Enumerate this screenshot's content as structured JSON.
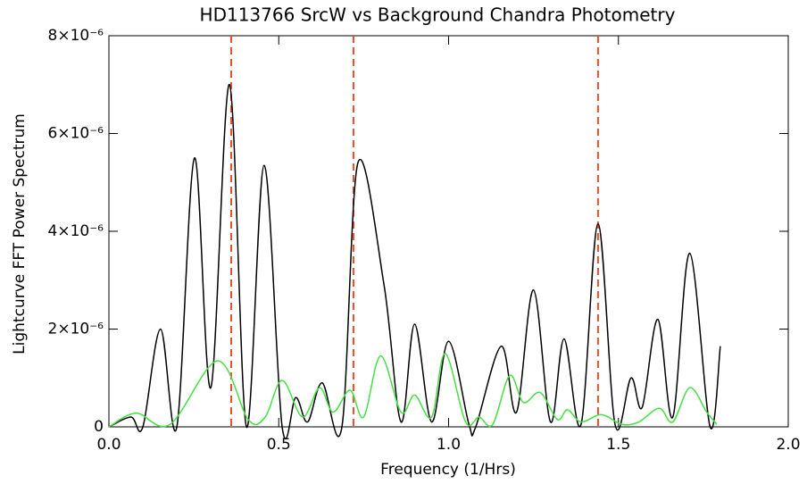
{
  "chart_data": {
    "type": "line",
    "title": "HD113766 SrcW vs Background Chandra Photometry",
    "xlabel": "Frequency (1/Hrs)",
    "ylabel": "Lightcurve FFT Power Spectrum",
    "xlim": [
      0,
      2
    ],
    "ylim": [
      0,
      8e-06
    ],
    "xticks": [
      {
        "value": 0,
        "label": "0.0"
      },
      0.5,
      {
        "value": 1,
        "label": "1.0"
      },
      1.5,
      {
        "value": 2,
        "label": "2.0"
      }
    ],
    "yticks": [
      0,
      {
        "value": 2e-06,
        "label": "2×10⁻⁶"
      },
      {
        "value": 4e-06,
        "label": "4×10⁻⁶"
      },
      {
        "value": 6e-06,
        "label": "6×10⁻⁶"
      },
      {
        "value": 8e-06,
        "label": "8×10⁻⁶"
      }
    ],
    "vlines": {
      "color": "#e8502a",
      "x": [
        0.36,
        0.72,
        1.44
      ]
    },
    "series": [
      {
        "color": "#000000",
        "x": [
          0,
          0.065,
          0.1,
          0.152,
          0.2,
          0.252,
          0.3,
          0.355,
          0.405,
          0.457,
          0.51,
          0.55,
          0.585,
          0.628,
          0.686,
          0.733,
          0.81,
          0.86,
          0.9,
          0.95,
          1.0,
          1.06,
          1.08,
          1.155,
          1.2,
          1.25,
          1.3,
          1.34,
          1.39,
          1.44,
          1.49,
          1.537,
          1.57,
          1.616,
          1.66,
          1.71,
          1.77,
          1.8
        ],
        "values": [
          0,
          2e-07,
          0,
          2e-06,
          0,
          5.5e-06,
          8e-07,
          7e-06,
          0,
          5.35e-06,
          0,
          6e-07,
          1e-07,
          9e-07,
          0,
          5.4e-06,
          2.9e-06,
          1e-07,
          2.1e-06,
          1e-07,
          1.75e-06,
          5e-08,
          0,
          1.65e-06,
          3e-07,
          2.8e-06,
          1e-07,
          1.8e-06,
          5e-08,
          4.15e-06,
          5e-08,
          1e-06,
          4e-07,
          2.2e-06,
          2e-07,
          3.55e-06,
          0,
          1.65e-06
        ]
      },
      {
        "color": "#44e044",
        "x": [
          0,
          0.08,
          0.18,
          0.32,
          0.41,
          0.46,
          0.51,
          0.57,
          0.62,
          0.66,
          0.71,
          0.75,
          0.8,
          0.86,
          0.9,
          0.95,
          0.99,
          1.05,
          1.09,
          1.13,
          1.18,
          1.22,
          1.27,
          1.32,
          1.35,
          1.39,
          1.45,
          1.51,
          1.56,
          1.62,
          1.66,
          1.71,
          1.76,
          1.79
        ],
        "values": [
          0,
          2.8e-07,
          5e-08,
          1.35e-06,
          1.5e-07,
          2e-07,
          9.5e-07,
          2e-07,
          8e-07,
          3e-07,
          7.5e-07,
          2e-07,
          1.45e-06,
          3e-07,
          6.5e-07,
          2e-07,
          1.5e-06,
          1e-07,
          2e-07,
          5e-08,
          1.05e-06,
          5e-07,
          7e-07,
          1.5e-07,
          3.5e-07,
          1e-07,
          2.5e-07,
          5e-08,
          1e-07,
          3.8e-07,
          1e-07,
          8e-07,
          3e-07,
          5e-08
        ]
      }
    ]
  }
}
